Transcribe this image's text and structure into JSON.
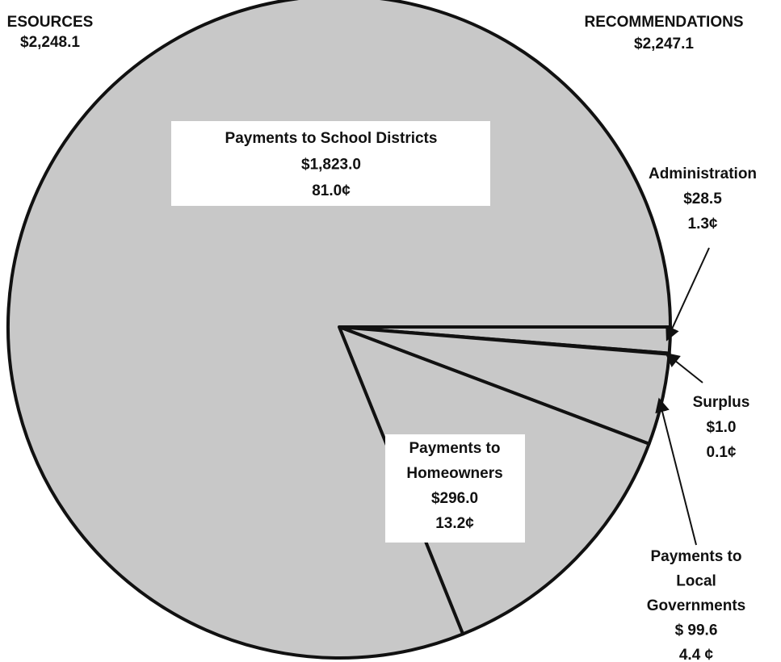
{
  "chart_data": {
    "type": "pie",
    "left_title": "ESOURCES",
    "left_total": "$2,248.1",
    "right_title": "RECOMMENDATIONS",
    "right_total": "$2,247.1",
    "categories": [
      "Administration",
      "Surplus",
      "Payments to\nLocal\nGovernments",
      "Payments to\nHomeowners",
      "Payments to School Districts"
    ],
    "values": [
      28.5,
      1.0,
      99.6,
      296.0,
      1823.0
    ],
    "value_labels": [
      "$28.5",
      "$1.0",
      "$ 99.6",
      "$296.0",
      "$1,823.0"
    ],
    "share_labels": [
      "1.3¢",
      "0.1¢",
      "4.4 ¢",
      "13.2¢",
      "81.0¢"
    ],
    "color": "#c8c8c8",
    "edge_color": "#111111"
  }
}
